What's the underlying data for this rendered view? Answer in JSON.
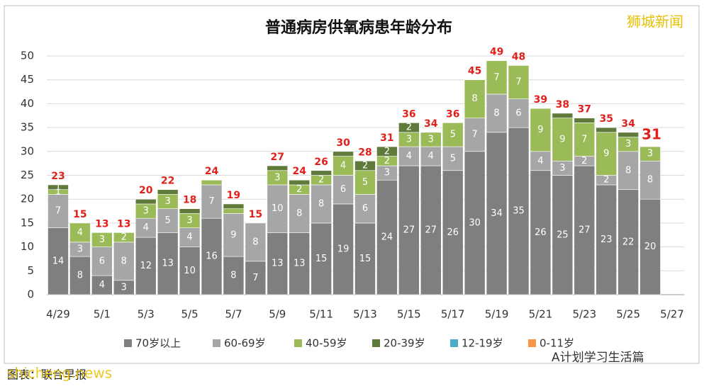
{
  "chart_data": {
    "type": "stacked-bar",
    "title": "普通病房供氧病患年龄分布",
    "watermark": "狮城新闻",
    "source": "图表：联合早报",
    "footer_watermark": "shicheng.news",
    "wechat": "A计划学习生活篇",
    "categories": [
      "4/29",
      null,
      "5/1",
      null,
      "5/3",
      null,
      "5/5",
      null,
      "5/7",
      null,
      "5/9",
      null,
      "5/11",
      null,
      "5/13",
      null,
      "5/15",
      null,
      "5/17",
      null,
      "5/19",
      null,
      "5/21",
      null,
      "5/23",
      null,
      "5/25",
      null,
      "5/27"
    ],
    "series": [
      {
        "name": "70岁以上",
        "color": "#7f7f7f",
        "values": [
          14,
          8,
          4,
          3,
          12,
          13,
          10,
          16,
          8,
          7,
          13,
          13,
          15,
          19,
          15,
          24,
          27,
          27,
          26,
          30,
          34,
          35,
          26,
          25,
          27,
          23,
          22,
          20,
          null
        ]
      },
      {
        "name": "60-69岁",
        "color": "#a6a6a6",
        "values": [
          7,
          3,
          6,
          8,
          4,
          5,
          4,
          7,
          9,
          8,
          10,
          8,
          8,
          6,
          6,
          3,
          4,
          4,
          5,
          7,
          8,
          6,
          4,
          3,
          2,
          2,
          8,
          8,
          null
        ]
      },
      {
        "name": "40-59岁",
        "color": "#9bbb59",
        "values": [
          1,
          4,
          3,
          2,
          3,
          3,
          3,
          1,
          1,
          0,
          3,
          2,
          2,
          4,
          5,
          2,
          3,
          3,
          5,
          8,
          7,
          7,
          9,
          9,
          7,
          9,
          3,
          3,
          null
        ]
      },
      {
        "name": "20-39岁",
        "color": "#5f7a3a",
        "values": [
          1,
          0,
          0,
          0,
          1,
          1,
          1,
          0,
          1,
          0,
          1,
          1,
          1,
          1,
          2,
          2,
          2,
          0,
          0,
          0,
          0,
          0,
          0,
          1,
          1,
          1,
          1,
          0,
          null
        ]
      },
      {
        "name": "12-19岁",
        "color": "#4bacc6",
        "values": [
          0,
          0,
          0,
          0,
          0,
          0,
          0,
          0,
          0,
          0,
          0,
          0,
          0,
          0,
          0,
          0,
          0,
          0,
          0,
          0,
          0,
          0,
          0,
          0,
          0,
          0,
          0,
          0,
          null
        ]
      },
      {
        "name": "0-11岁",
        "color": "#f79646",
        "values": [
          0,
          0,
          0,
          0,
          0,
          0,
          0,
          0,
          0,
          0,
          0,
          0,
          0,
          0,
          0,
          0,
          0,
          0,
          0,
          0,
          0,
          0,
          0,
          0,
          0,
          0,
          0,
          0,
          null
        ]
      }
    ],
    "totals": [
      23,
      15,
      13,
      13,
      20,
      22,
      18,
      24,
      19,
      15,
      27,
      24,
      26,
      30,
      28,
      31,
      36,
      34,
      36,
      45,
      49,
      48,
      39,
      38,
      37,
      35,
      34,
      31,
      null
    ],
    "total_color": "#e0201b",
    "ylim": [
      0,
      50
    ],
    "yticks": [
      0,
      5,
      10,
      15,
      20,
      25,
      30,
      35,
      40,
      45,
      50
    ],
    "grid": true
  }
}
